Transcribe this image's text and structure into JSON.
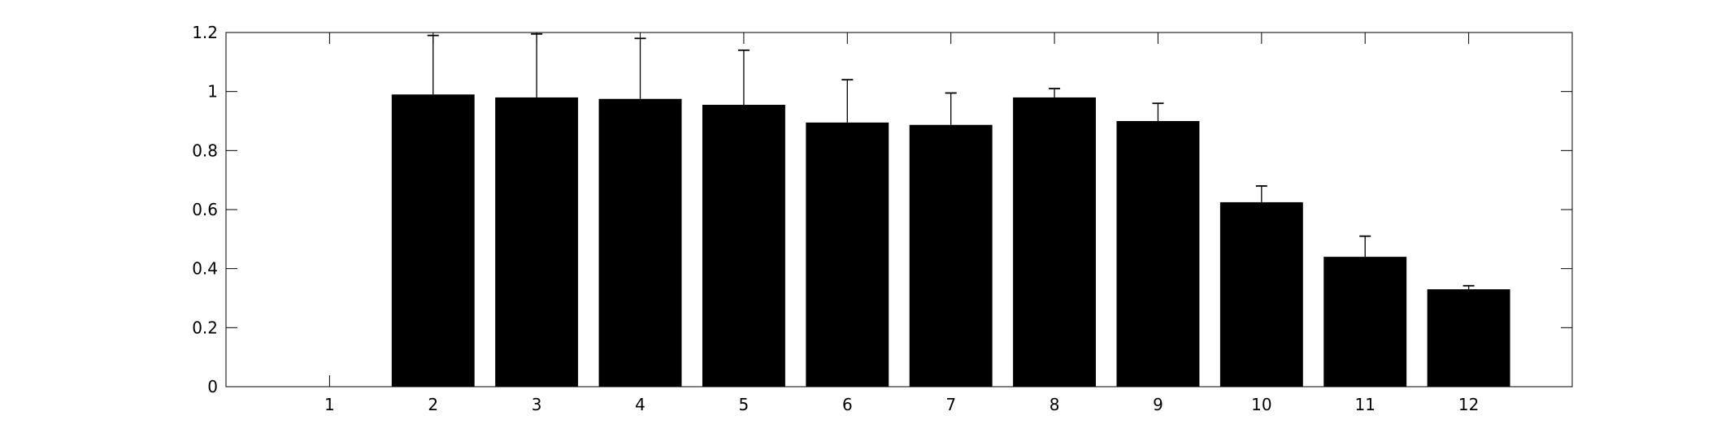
{
  "chart_data": {
    "type": "bar",
    "categories": [
      "1",
      "2",
      "3",
      "4",
      "5",
      "6",
      "7",
      "8",
      "9",
      "10",
      "11",
      "12"
    ],
    "series": [
      {
        "values": [
          0,
          0.99,
          0.98,
          0.975,
          0.955,
          0.895,
          0.887,
          0.98,
          0.9,
          0.625,
          0.44,
          0.33
        ],
        "error_upper": [
          null,
          1.19,
          1.195,
          1.18,
          1.14,
          1.04,
          0.995,
          1.01,
          0.96,
          0.68,
          0.51,
          0.342
        ]
      }
    ],
    "yticks": [
      "0",
      "0.2",
      "0.4",
      "0.6",
      "0.8",
      "1",
      "1.2"
    ],
    "ylim": [
      0,
      1.2
    ],
    "xlim": [
      0,
      13
    ],
    "bar_color": "#000000",
    "grid": false,
    "legend": false,
    "title": "",
    "xlabel": "",
    "ylabel": ""
  }
}
